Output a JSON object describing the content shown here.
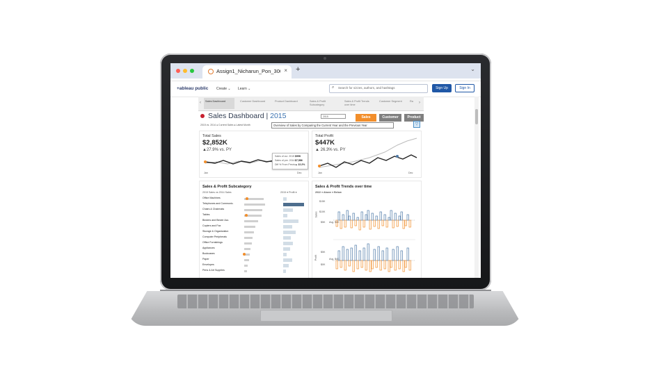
{
  "browser": {
    "tab_title": "Assign1_Nicharun_Pon_300",
    "tab_close": "×",
    "new_tab": "+",
    "menu_chevron": "⌄",
    "icons": {
      "favicon": "tableau-favicon-icon",
      "close": "close-icon"
    },
    "window_dots": [
      "#ff5f57",
      "#febc2e",
      "#28c840"
    ]
  },
  "site_header": {
    "logo": "+ableau public",
    "nav": [
      "Create ⌄",
      "Learn ⌄"
    ],
    "search_placeholder": "Search for vizzes, authors, and hashtags",
    "signup_label": "Sign Up",
    "signin_label": "Sign In",
    "brand_color": "#1f57a6"
  },
  "sheet_tabs": {
    "left_arrow": "‹",
    "right_arrow": "›",
    "items": [
      {
        "label": "Sales Dashboard",
        "active": true
      },
      {
        "label": "Customer Dashboard",
        "active": false
      },
      {
        "label": "Product Dashboard",
        "active": false
      },
      {
        "label": "Sales & Profit Subcategory",
        "active": false
      },
      {
        "label": "Sales & Profit Trends over time",
        "active": false
      },
      {
        "label": "Customer Segment",
        "active": false
      },
      {
        "label": "Ra",
        "active": false
      }
    ]
  },
  "dashboard": {
    "title": "Sales Dashboard",
    "separator": " | ",
    "year": "2015",
    "year_select": "2015",
    "buttons": [
      {
        "label": "Sales",
        "color": "#f28e2b"
      },
      {
        "label": "Customer",
        "color": "#7f7f7f"
      },
      {
        "label": "Product",
        "color": "#7f7f7f"
      }
    ],
    "legend": "2015 vs. 2014 ● Current Sales ● Latest Month",
    "overview": "Overview of Sales by Comparing the Current Year and the Previous Year",
    "filter_icon": "▽"
  },
  "kpi": {
    "sales": {
      "title": "Total Sales",
      "value": "$2,852K",
      "delta": "▲27.9% vs. PY",
      "axis": [
        "Jan",
        "Dec"
      ]
    },
    "profit": {
      "title": "Total Profit",
      "value": "$447K",
      "delta": "▲ 26.3% vs. PY",
      "axis": [
        "Jan",
        "Dec"
      ]
    }
  },
  "tooltip": {
    "rows": [
      {
        "label": "Sales of cur. 2015",
        "value": "$99K"
      },
      {
        "label": "Sales of pre. 2014",
        "value": "$7,586"
      },
      {
        "label": "Diff % From Previo",
        "value": "▲ 22.2%"
      }
    ]
  },
  "subcategory": {
    "title": "Sales & Profit Subcategory",
    "legend_left": "2015 Sales vs 2014 Sales",
    "legend_right": "2015 ● Profit ●",
    "rows": [
      {
        "name": "Office Machines",
        "sales": 0.55,
        "profit": 0.15
      },
      {
        "name": "Telephones and Communic.",
        "sales": 0.6,
        "profit": 0.95
      },
      {
        "name": "Chairs & Chairmats",
        "sales": 0.52,
        "profit": 0.45
      },
      {
        "name": "Tables",
        "sales": 0.5,
        "profit": 0.2
      },
      {
        "name": "Binders and Binder Acc.",
        "sales": 0.4,
        "profit": 0.7
      },
      {
        "name": "Copiers and Fax",
        "sales": 0.32,
        "profit": 0.4
      },
      {
        "name": "Storage & Organization",
        "sales": 0.28,
        "profit": 0.55
      },
      {
        "name": "Computer Peripherals",
        "sales": 0.24,
        "profit": 0.35
      },
      {
        "name": "Office Furnishings",
        "sales": 0.22,
        "profit": 0.45
      },
      {
        "name": "Appliances",
        "sales": 0.18,
        "profit": 0.3
      },
      {
        "name": "Bookcases",
        "sales": 0.16,
        "profit": 0.15
      },
      {
        "name": "Paper",
        "sales": 0.14,
        "profit": 0.4
      },
      {
        "name": "Envelopes",
        "sales": 0.1,
        "profit": 0.25
      },
      {
        "name": "Pens & Art Supplies",
        "sales": 0.08,
        "profit": 0.12
      }
    ]
  },
  "trends": {
    "title": "Sales & Profit Trends over time",
    "legend": "2022 ● Above ● Below",
    "sales_axis_title": "Sales",
    "profit_axis_title": "Profit",
    "sales_ticks": [
      "$15K",
      "$10K",
      "$5K"
    ],
    "profit_ticks": [
      "$5K",
      "$0K"
    ],
    "avg_label": "Avg. $4K",
    "above_color": "#4e79a7",
    "below_color": "#f28e2b"
  },
  "colors": {
    "kpi_line_current": "#222222",
    "kpi_line_previous": "#bbbbbb",
    "accent_orange": "#f28e2b"
  }
}
